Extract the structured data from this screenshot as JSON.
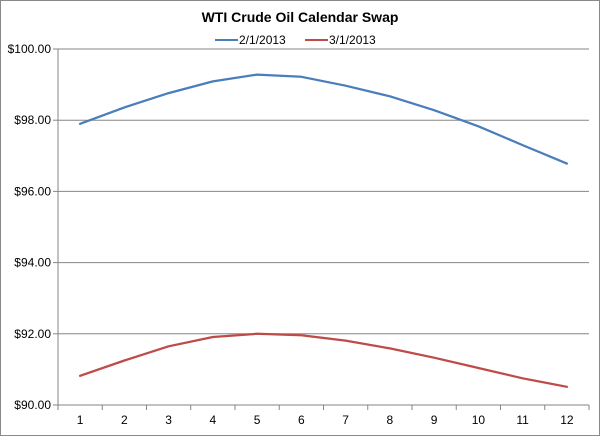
{
  "chart_data": {
    "type": "line",
    "title": "WTI Crude Oil Calendar Swap",
    "xlabel": "",
    "ylabel": "",
    "x": [
      1,
      2,
      3,
      4,
      5,
      6,
      7,
      8,
      9,
      10,
      11,
      12
    ],
    "y_tick_labels": [
      "$90.00",
      "$92.00",
      "$94.00",
      "$96.00",
      "$98.00",
      "$100.00"
    ],
    "y_ticks": [
      90,
      92,
      94,
      96,
      98,
      100
    ],
    "ylim": [
      90,
      100
    ],
    "grid": "horizontal",
    "legend_position": "top",
    "series": [
      {
        "name": "2/1/2013",
        "color": "#4a7ebb",
        "values": [
          97.9,
          98.36,
          98.76,
          99.09,
          99.28,
          99.22,
          98.97,
          98.67,
          98.28,
          97.83,
          97.3,
          96.78
        ]
      },
      {
        "name": "3/1/2013",
        "color": "#be4b48",
        "values": [
          90.82,
          91.25,
          91.65,
          91.91,
          92.0,
          91.96,
          91.81,
          91.59,
          91.33,
          91.04,
          90.75,
          90.51
        ]
      }
    ]
  }
}
